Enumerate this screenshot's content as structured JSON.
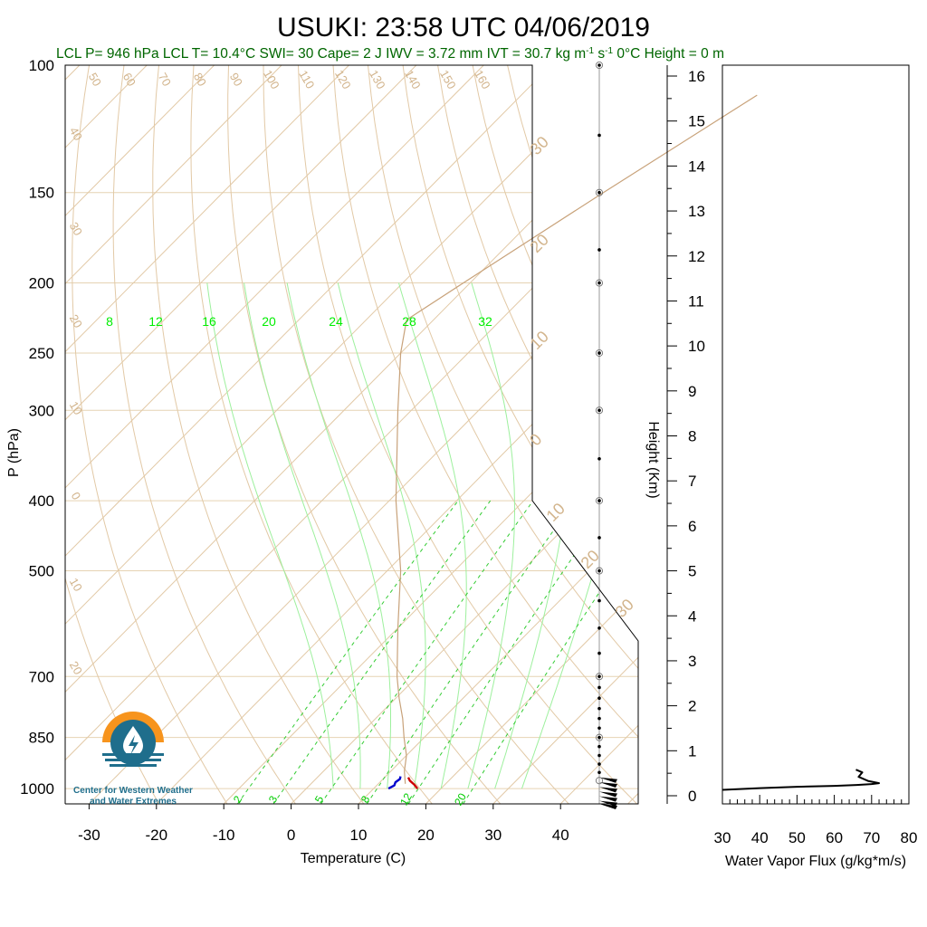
{
  "title": "USUKI: 23:58 UTC 04/06/2019",
  "subtitle": "LCL P= 946 hPa  LCL T= 10.4°C  SWI= 30  Cape= 2 J  IWV = 3.72 mm  IVT = 30.7 kg m",
  "subtitle_unit_sup1": "-1",
  "subtitle_unit_mid": " s",
  "subtitle_unit_sup2": "-1",
  "subtitle_tail": "  0°C Height = 0 m",
  "logo": {
    "line1": "Center for Western Weather",
    "line2": "and Water Extremes"
  },
  "colors": {
    "temperature_trace": "#cc0000",
    "dewpoint_trace": "#0000cc",
    "mixing_ratio": "#00cc00",
    "adiabats": "#d2b48c",
    "subtitle": "#006600",
    "logo_orange": "#f7941d",
    "logo_blue": "#1f6e8c"
  },
  "chart_data": [
    {
      "type": "line",
      "subtype": "skew-t log-p sounding",
      "xlabel": "Temperature (C)",
      "ylabel": "P (hPa)",
      "x_ticks": [
        -30,
        -20,
        -10,
        0,
        10,
        20,
        30,
        40
      ],
      "y_ticks": [
        100,
        150,
        200,
        250,
        300,
        400,
        500,
        700,
        850,
        1000
      ],
      "y_scale": "log",
      "ylim": [
        1050,
        100
      ],
      "mixing_ratio_labels_top": [
        "8",
        "12",
        "16",
        "20",
        "24",
        "28",
        "32"
      ],
      "mixing_ratio_labels_bottom": [
        "2",
        "3",
        "5",
        "8",
        "12",
        "20"
      ],
      "dry_adiabat_labels": [
        "50",
        "60",
        "70",
        "80",
        "90",
        "100",
        "110",
        "120",
        "130",
        "140",
        "150",
        "160"
      ],
      "left_temp_labels": [
        "40",
        "30",
        "20",
        "10",
        "0",
        "10",
        "20"
      ],
      "right_temp_labels": [
        "30",
        "20",
        "10",
        "0",
        "10",
        "20",
        "30"
      ],
      "series": [
        {
          "pressure": [
            1000,
            988,
            975,
            965
          ],
          "temperature": [
            16.5,
            15.5,
            14.2,
            13.5
          ]
        },
        {
          "pressure": [
            1000,
            990,
            980,
            970,
            962
          ],
          "temperature": [
            12.2,
            12.6,
            12.3,
            12.5,
            12.2
          ]
        },
        {
          "pressure": [
            985,
            946,
            900,
            850,
            800,
            750,
            700,
            600,
            500,
            400,
            300,
            250,
            225,
            200,
            150,
            110
          ],
          "temperature": [
            14.0,
            12.0,
            10.0,
            7.0,
            4.0,
            0.5,
            -3.0,
            -10.0,
            -18.0,
            -29.0,
            -42.0,
            -50.0,
            -54.0,
            -51.0,
            -43.5,
            -35.0
          ]
        }
      ],
      "wind_profile_pressure": [
        1050,
        1040,
        1025,
        1010,
        995,
        980,
        965,
        950,
        925,
        900,
        875,
        850,
        825,
        800,
        775,
        750,
        725,
        700,
        650,
        600,
        550,
        500,
        450,
        400,
        350,
        300,
        250,
        200,
        180,
        150,
        125,
        100
      ],
      "wind_calm_markers": [
        975,
        850,
        700,
        500,
        400,
        300,
        250,
        200,
        150,
        100
      ]
    },
    {
      "type": "line",
      "ylabel": "Height (Km)",
      "xlabel": "Water Vapor Flux (g/kg*m/s)",
      "xlim": [
        30,
        80
      ],
      "ylim": [
        -0.2,
        16.2
      ],
      "x_ticks": [
        30,
        40,
        50,
        60,
        70,
        80
      ],
      "y_ticks": [
        0,
        1,
        2,
        3,
        4,
        5,
        6,
        7,
        8,
        9,
        10,
        11,
        12,
        13,
        14,
        15,
        16
      ],
      "series": [
        {
          "x": [
            30,
            40,
            50,
            60,
            66,
            70,
            72,
            69,
            66.5,
            67.5,
            65.8
          ],
          "y": [
            0.13,
            0.17,
            0.2,
            0.22,
            0.24,
            0.26,
            0.28,
            0.33,
            0.42,
            0.52,
            0.58
          ]
        }
      ]
    }
  ]
}
